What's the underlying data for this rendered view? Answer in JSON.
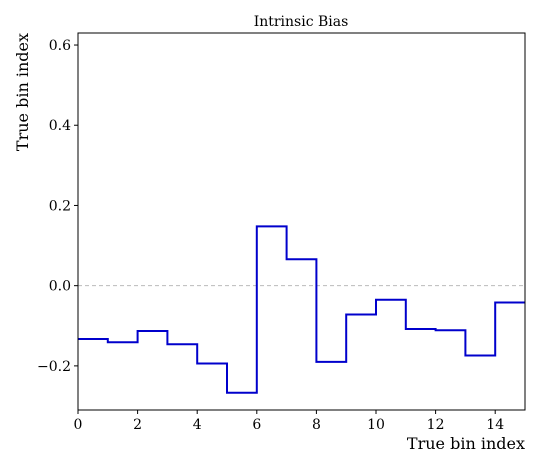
{
  "chart_data": {
    "type": "line",
    "step": "post",
    "title": "Intrinsic Bias",
    "xlabel": "True bin index",
    "ylabel": "True bin index",
    "xlim": [
      0,
      15
    ],
    "ylim": [
      -0.31,
      0.63
    ],
    "xticks": [
      0,
      2,
      4,
      6,
      8,
      10,
      12,
      14
    ],
    "xtick_labels": [
      "0",
      "2",
      "4",
      "6",
      "8",
      "10",
      "12",
      "14"
    ],
    "yticks": [
      -0.2,
      0.0,
      0.2,
      0.4,
      0.6
    ],
    "ytick_labels": [
      "−0.2",
      "0.0",
      "0.2",
      "0.4",
      "0.6"
    ],
    "reference_line": {
      "y": 0.0,
      "style": "dashed",
      "color": "#bbbbbb"
    },
    "grid": false,
    "series": [
      {
        "color": "#0000cc",
        "x": [
          0,
          1,
          2,
          3,
          4,
          5,
          6,
          7,
          8,
          9,
          10,
          11,
          12,
          13,
          14,
          15
        ],
        "values": [
          -0.133,
          -0.141,
          -0.113,
          -0.146,
          -0.194,
          -0.267,
          0.148,
          0.066,
          -0.19,
          -0.072,
          -0.035,
          -0.108,
          -0.111,
          -0.174,
          -0.042,
          -0.042
        ]
      }
    ]
  }
}
